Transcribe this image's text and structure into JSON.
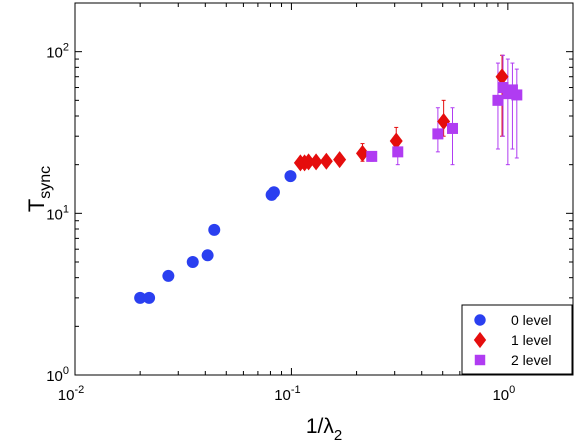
{
  "chart_data": {
    "type": "scatter",
    "xscale": "log",
    "yscale": "log",
    "xlim": [
      0.01,
      2
    ],
    "ylim": [
      1,
      200
    ],
    "xlabel": {
      "main": "1/λ",
      "sub": "2"
    },
    "ylabel": {
      "main": "T",
      "sub": "sync"
    },
    "x_ticks": [
      {
        "value": 0.01,
        "base": "10",
        "exp": "-2"
      },
      {
        "value": 0.1,
        "base": "10",
        "exp": "-1"
      },
      {
        "value": 1,
        "base": "10",
        "exp": "0"
      }
    ],
    "y_ticks": [
      {
        "value": 1,
        "base": "10",
        "exp": "0"
      },
      {
        "value": 10,
        "base": "10",
        "exp": "1"
      },
      {
        "value": 100,
        "base": "10",
        "exp": "2"
      }
    ],
    "grid": false,
    "legend_position": "bottom-right",
    "series": [
      {
        "name": "0 level",
        "marker": "circle",
        "color": "#2a3ff0",
        "points": [
          {
            "x": 0.02,
            "y": 3.0
          },
          {
            "x": 0.022,
            "y": 3.0
          },
          {
            "x": 0.027,
            "y": 4.1
          },
          {
            "x": 0.035,
            "y": 5.0
          },
          {
            "x": 0.041,
            "y": 5.5
          },
          {
            "x": 0.044,
            "y": 7.9
          },
          {
            "x": 0.081,
            "y": 13.0
          },
          {
            "x": 0.083,
            "y": 13.5
          },
          {
            "x": 0.099,
            "y": 17.0
          }
        ]
      },
      {
        "name": "1 level",
        "marker": "diamond",
        "color": "#e50d0d",
        "points": [
          {
            "x": 0.11,
            "y": 20.5,
            "ylo": 20.5,
            "yhi": 20.5
          },
          {
            "x": 0.115,
            "y": 20.5,
            "ylo": 20.5,
            "yhi": 20.5
          },
          {
            "x": 0.12,
            "y": 20.8,
            "ylo": 20.8,
            "yhi": 20.8
          },
          {
            "x": 0.13,
            "y": 20.8,
            "ylo": 20.8,
            "yhi": 20.8
          },
          {
            "x": 0.145,
            "y": 21.0,
            "ylo": 21.0,
            "yhi": 21.0
          },
          {
            "x": 0.167,
            "y": 21.5,
            "ylo": 21.5,
            "yhi": 21.5
          },
          {
            "x": 0.213,
            "y": 23.5,
            "ylo": 21.0,
            "yhi": 27.0
          },
          {
            "x": 0.305,
            "y": 28.0,
            "ylo": 23.0,
            "yhi": 34.0
          },
          {
            "x": 0.505,
            "y": 37.0,
            "ylo": 30.0,
            "yhi": 50.0
          },
          {
            "x": 0.94,
            "y": 70.0,
            "ylo": 30.0,
            "yhi": 95.0
          }
        ]
      },
      {
        "name": "2 level",
        "marker": "square",
        "color": "#b03cf2",
        "points": [
          {
            "x": 0.235,
            "y": 22.5,
            "ylo": 21.0,
            "yhi": 24.0
          },
          {
            "x": 0.31,
            "y": 24.0,
            "ylo": 20.0,
            "yhi": 29.0
          },
          {
            "x": 0.475,
            "y": 31.0,
            "ylo": 24.0,
            "yhi": 45.0
          },
          {
            "x": 0.555,
            "y": 33.5,
            "ylo": 20.0,
            "yhi": 45.0
          },
          {
            "x": 0.9,
            "y": 50.0,
            "ylo": 25.0,
            "yhi": 85.0
          },
          {
            "x": 0.95,
            "y": 60.0,
            "ylo": 30.0,
            "yhi": 95.0
          },
          {
            "x": 1.0,
            "y": 55.0,
            "ylo": 20.0,
            "yhi": 90.0
          },
          {
            "x": 1.05,
            "y": 58.0,
            "ylo": 25.0,
            "yhi": 85.0
          },
          {
            "x": 1.1,
            "y": 54.0,
            "ylo": 22.0,
            "yhi": 78.0
          }
        ]
      }
    ]
  }
}
